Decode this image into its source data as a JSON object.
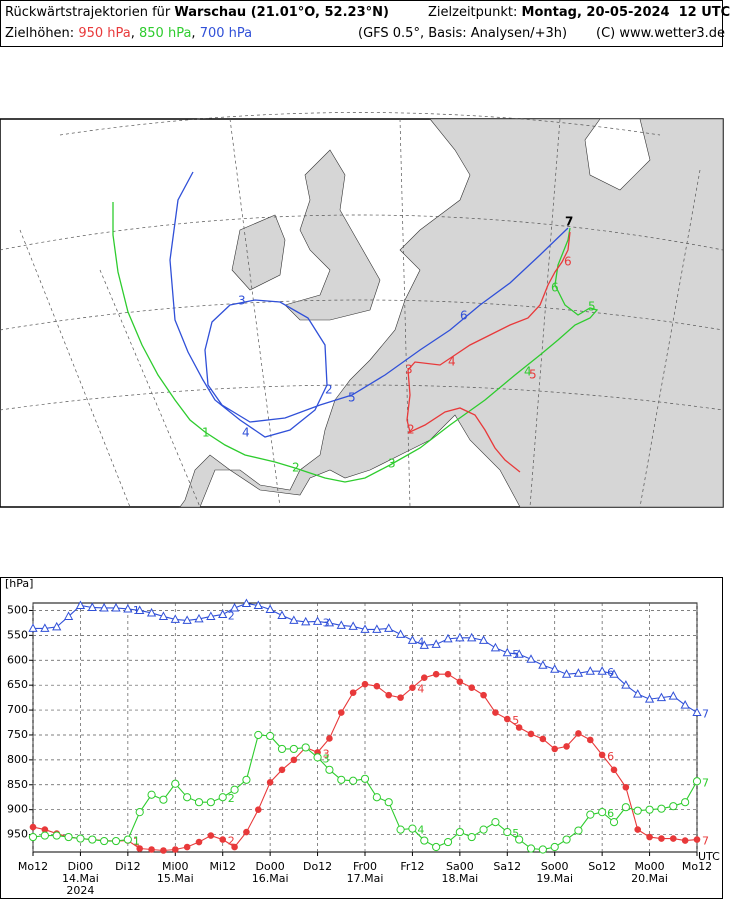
{
  "header": {
    "title_prefix": "Rückwärtstrajektorien für",
    "location": "Warschau (21.01°O, 52.23°N)",
    "target_label": "Zielzeitpunkt:",
    "target_time": "Montag, 20-05-2024  12 UTC",
    "levels_label": "Zielhöhen:",
    "separator": ",",
    "model": "(GFS 0.5°, Basis: Analysen/+3h)",
    "copyright": "(C) www.wetter3.de"
  },
  "chart_data": {
    "type": "line",
    "ylabel": "[hPa]",
    "xlabel": "UTC",
    "x": [
      0,
      3,
      6,
      9,
      12,
      15,
      18,
      21,
      24,
      27,
      30,
      33,
      36,
      39,
      42,
      45,
      48,
      51,
      54,
      57,
      60,
      63,
      66,
      69,
      72,
      75,
      78,
      81,
      84,
      87,
      90,
      93,
      96,
      99,
      102,
      105,
      108,
      111,
      114,
      117,
      120,
      123,
      126,
      129,
      132,
      135,
      138,
      141,
      144,
      147,
      150,
      153,
      156,
      159,
      162,
      165,
      168
    ],
    "xlim": [
      0,
      168
    ],
    "xticks": [
      {
        "value": 0,
        "label": "Mo12"
      },
      {
        "value": 12,
        "label": "Di00"
      },
      {
        "value": 24,
        "label": "Di12"
      },
      {
        "value": 36,
        "label": "Mi00"
      },
      {
        "value": 48,
        "label": "Mi12"
      },
      {
        "value": 60,
        "label": "Do00"
      },
      {
        "value": 72,
        "label": "Do12"
      },
      {
        "value": 84,
        "label": "Fr00"
      },
      {
        "value": 96,
        "label": "Fr12"
      },
      {
        "value": 108,
        "label": "Sa00"
      },
      {
        "value": 120,
        "label": "Sa12"
      },
      {
        "value": 132,
        "label": "So00"
      },
      {
        "value": 144,
        "label": "So12"
      },
      {
        "value": 156,
        "label": "Mo00"
      },
      {
        "value": 168,
        "label": "Mo12"
      }
    ],
    "date_labels": [
      {
        "value": 12,
        "label": "14.Mai"
      },
      {
        "value": 36,
        "label": "15.Mai"
      },
      {
        "value": 60,
        "label": "16.Mai"
      },
      {
        "value": 84,
        "label": "17.Mai"
      },
      {
        "value": 108,
        "label": "18.Mai"
      },
      {
        "value": 132,
        "label": "19.Mai"
      },
      {
        "value": 156,
        "label": "20.Mai"
      }
    ],
    "year_label": {
      "value": 12,
      "label": "2024"
    },
    "ylim": [
      485,
      985
    ],
    "y_inverted": true,
    "yticks": [
      500,
      550,
      600,
      650,
      700,
      750,
      800,
      850,
      900,
      950
    ],
    "grid": true,
    "day_numbers": [
      1,
      2,
      3,
      4,
      5,
      6,
      7
    ],
    "series": [
      {
        "name": "950 hPa",
        "color": "#e8393a",
        "marker": "filled-circle",
        "values": [
          935,
          940,
          948,
          955,
          958,
          960,
          962,
          963,
          962,
          978,
          980,
          982,
          980,
          975,
          965,
          952,
          960,
          975,
          945,
          900,
          845,
          820,
          800,
          775,
          785,
          757,
          705,
          665,
          648,
          652,
          670,
          675,
          655,
          635,
          628,
          628,
          643,
          655,
          670,
          705,
          718,
          735,
          748,
          758,
          778,
          773,
          747,
          760,
          790,
          820,
          855,
          940,
          955,
          958,
          958,
          962,
          960
        ]
      },
      {
        "name": "850 hPa",
        "color": "#2ecc2e",
        "marker": "open-circle",
        "values": [
          955,
          952,
          952,
          955,
          958,
          960,
          963,
          963,
          960,
          905,
          870,
          880,
          848,
          875,
          885,
          885,
          875,
          860,
          840,
          750,
          752,
          778,
          778,
          775,
          795,
          820,
          840,
          842,
          838,
          875,
          885,
          940,
          938,
          962,
          975,
          965,
          945,
          955,
          940,
          925,
          945,
          960,
          978,
          980,
          975,
          960,
          942,
          910,
          905,
          925,
          895,
          902,
          900,
          898,
          893,
          885,
          843
        ]
      },
      {
        "name": "700 hPa",
        "color": "#3050d8",
        "marker": "open-triangle",
        "values": [
          536,
          536,
          533,
          512,
          490,
          494,
          495,
          495,
          497,
          500,
          505,
          512,
          518,
          520,
          517,
          512,
          508,
          495,
          486,
          490,
          498,
          510,
          520,
          523,
          522,
          525,
          530,
          532,
          538,
          538,
          536,
          548,
          560,
          570,
          568,
          557,
          555,
          555,
          560,
          575,
          585,
          588,
          598,
          610,
          618,
          628,
          626,
          622,
          622,
          628,
          650,
          668,
          678,
          675,
          672,
          690,
          705
        ]
      }
    ]
  }
}
